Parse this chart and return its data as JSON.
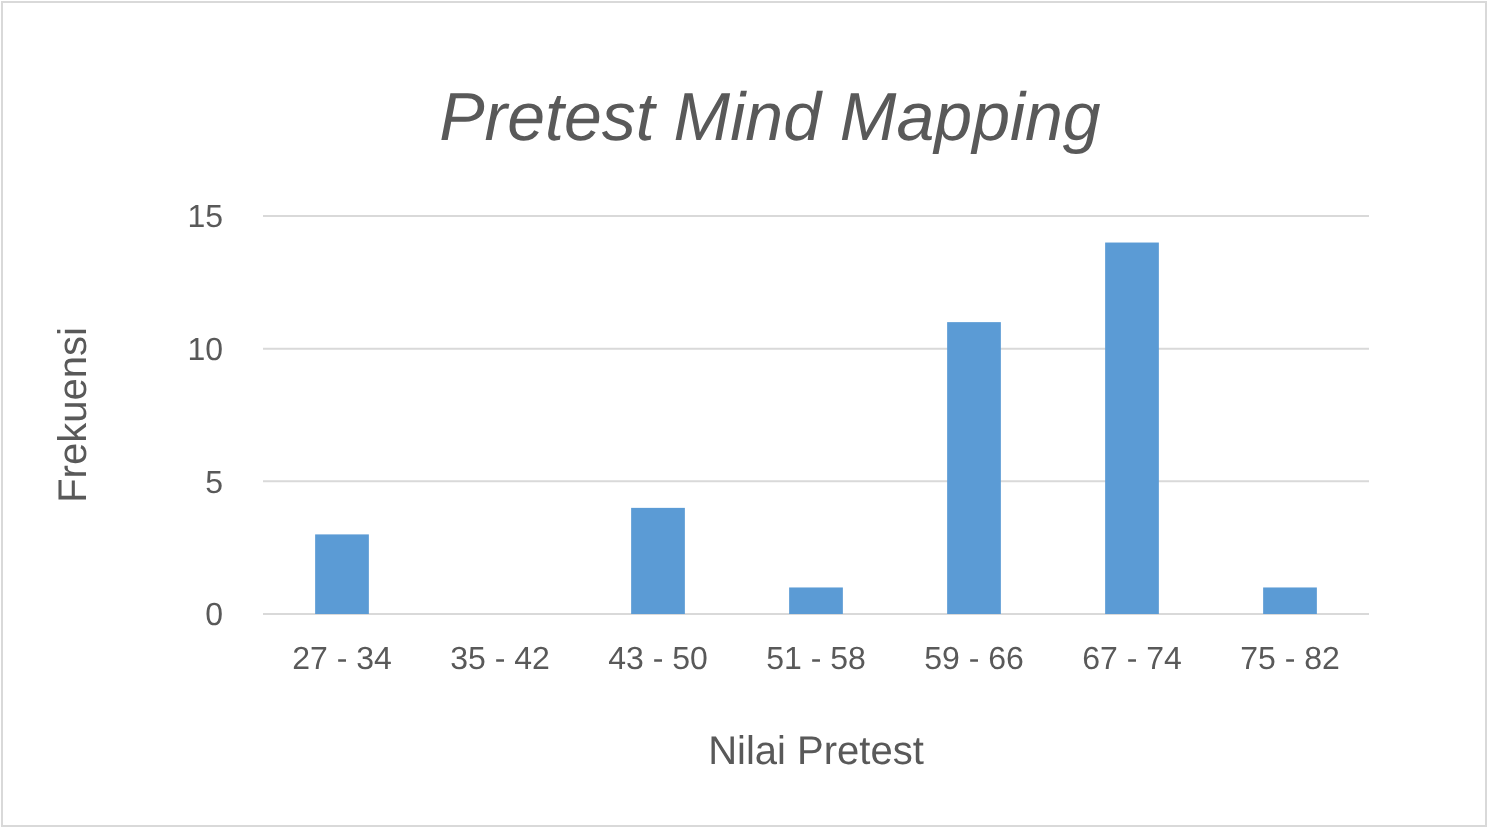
{
  "chart_data": {
    "type": "bar",
    "title": "Pretest Mind Mapping",
    "xlabel": "Nilai Pretest",
    "ylabel": "Frekuensi",
    "categories": [
      "27 - 34",
      "35 - 42",
      "43 - 50",
      "51 - 58",
      "59 - 66",
      "67 - 74",
      "75 - 82"
    ],
    "values": [
      3,
      0,
      4,
      1,
      11,
      14,
      1
    ],
    "color": "#5b9bd5",
    "ylim": [
      0,
      15
    ],
    "yticks": [
      0,
      5,
      10,
      15
    ],
    "grid": "y"
  }
}
